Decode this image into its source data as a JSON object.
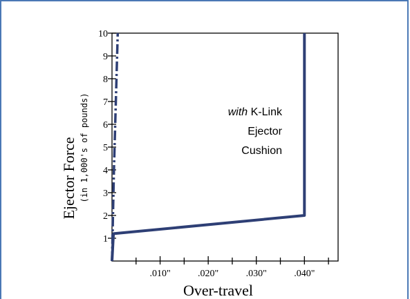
{
  "chart_data": {
    "type": "line",
    "xlabel": "Over-travel",
    "ylabel": "Ejector Force",
    "ylabel_sub": "(in 1,000's of pounds)",
    "xlim": [
      0,
      0.047
    ],
    "ylim": [
      0,
      10
    ],
    "x_ticks": [
      {
        "value": 0.01,
        "label": ".010\""
      },
      {
        "value": 0.02,
        "label": ".020\""
      },
      {
        "value": 0.03,
        "label": ".030\""
      },
      {
        "value": 0.04,
        "label": ".040\""
      }
    ],
    "y_ticks": [
      {
        "value": 1,
        "label": "1"
      },
      {
        "value": 2,
        "label": "2"
      },
      {
        "value": 3,
        "label": "3"
      },
      {
        "value": 4,
        "label": "4"
      },
      {
        "value": 5,
        "label": "5"
      },
      {
        "value": 6,
        "label": "6"
      },
      {
        "value": 7,
        "label": "7"
      },
      {
        "value": 8,
        "label": "8"
      },
      {
        "value": 9,
        "label": "9"
      },
      {
        "value": 10,
        "label": "10"
      }
    ],
    "series": [
      {
        "style": "solid",
        "color": "#2e3f75",
        "points": [
          [
            0,
            0
          ],
          [
            0.0003,
            1.2
          ],
          [
            0.04,
            2.0
          ],
          [
            0.04,
            10
          ]
        ]
      },
      {
        "style": "dash-dot",
        "color": "#2e3f75",
        "points": [
          [
            0,
            0
          ],
          [
            0.0004,
            4.0
          ],
          [
            0.0012,
            10
          ]
        ]
      }
    ],
    "annotation": {
      "line1_em": "with",
      "line1_rest": " K-Link",
      "line2": "Ejector",
      "line3": "Cushion"
    }
  }
}
